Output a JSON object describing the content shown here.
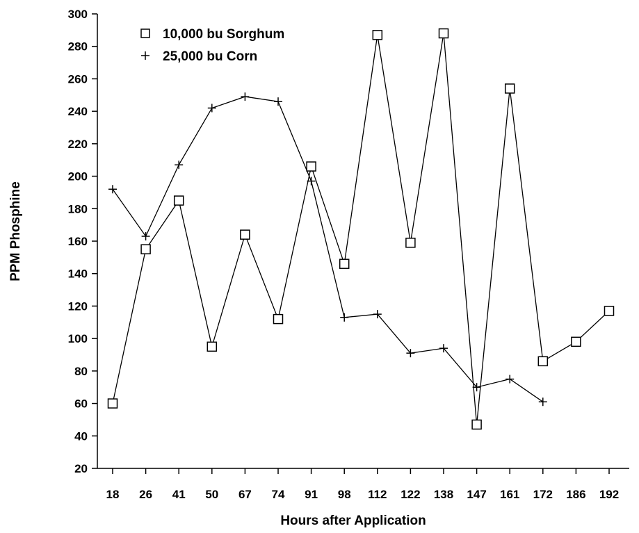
{
  "chart_data": {
    "type": "line",
    "categories": [
      "18",
      "26",
      "41",
      "50",
      "67",
      "74",
      "91",
      "98",
      "112",
      "122",
      "138",
      "147",
      "161",
      "172",
      "186",
      "192"
    ],
    "xlabel": "Hours after Application",
    "ylabel": "PPM Phosphine",
    "ylim": [
      20,
      300
    ],
    "yticks": [
      20,
      40,
      60,
      80,
      100,
      120,
      140,
      160,
      180,
      200,
      220,
      240,
      260,
      280,
      300
    ],
    "grid": false,
    "legend_position": "top-left",
    "series": [
      {
        "name": "10,000 bu Sorghum",
        "marker": "square",
        "values": [
          60,
          155,
          185,
          95,
          164,
          112,
          206,
          146,
          287,
          159,
          288,
          47,
          254,
          86,
          98,
          117
        ]
      },
      {
        "name": "25,000 bu Corn",
        "marker": "plus",
        "values": [
          192,
          163,
          207,
          242,
          249,
          246,
          197,
          113,
          115,
          91,
          94,
          70,
          75,
          61,
          null,
          null
        ]
      }
    ]
  }
}
